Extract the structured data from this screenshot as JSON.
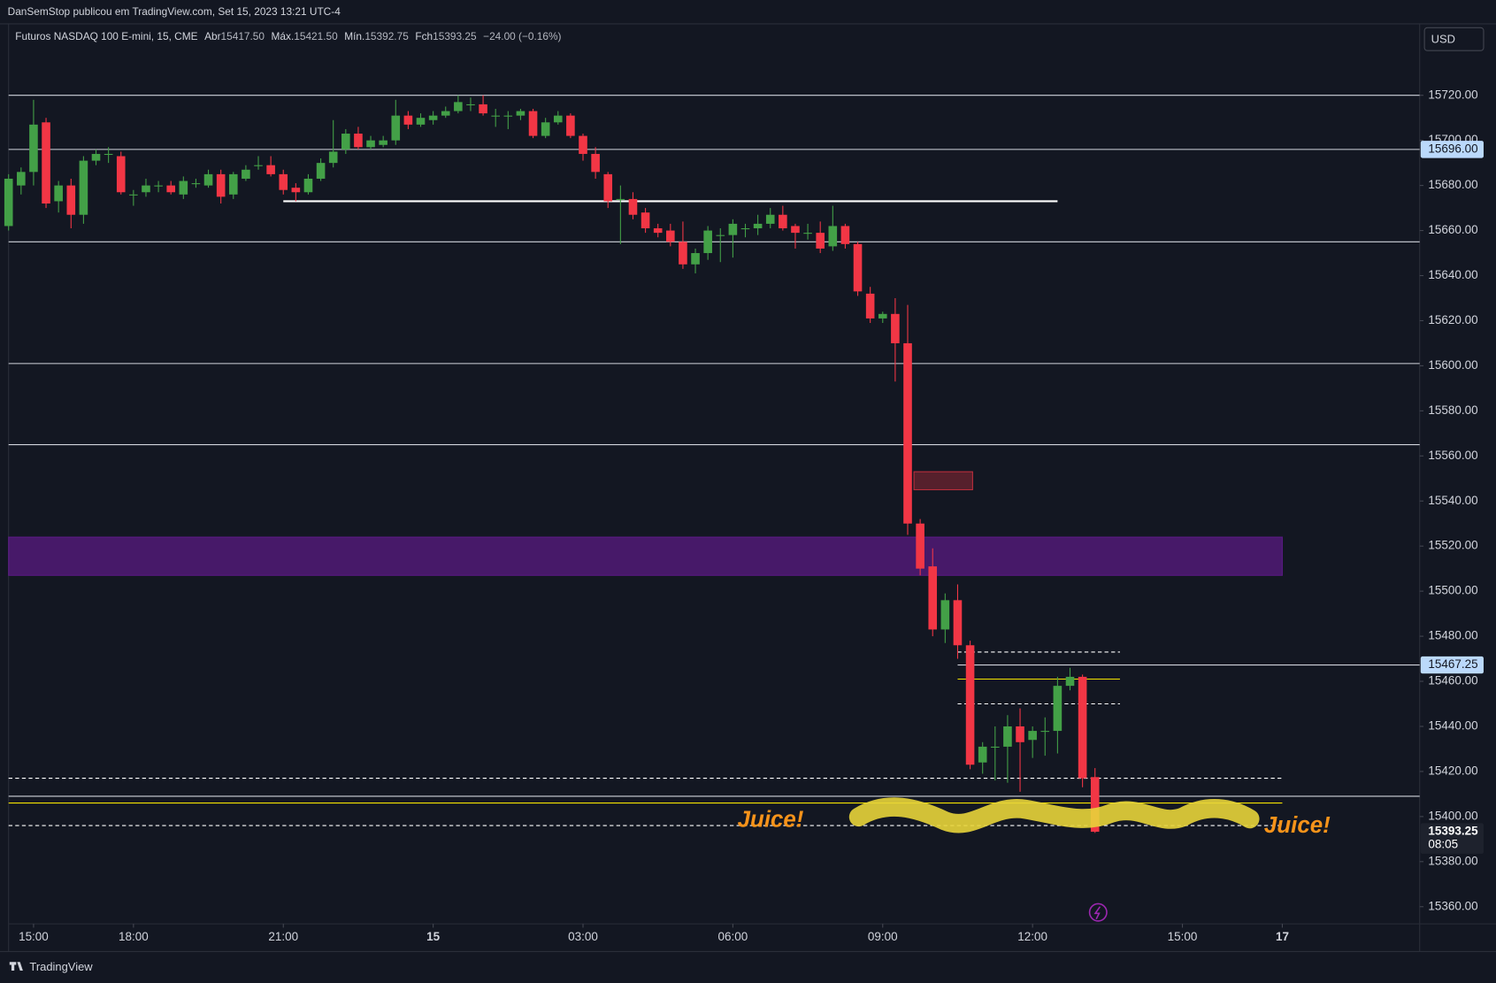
{
  "header": {
    "credit": "DanSemStop publicou em TradingView.com, Set 15, 2023 13:21 UTC-4",
    "currency": "USD",
    "footer": "TradingView"
  },
  "chart_data": {
    "type": "candlestick",
    "title": "Futuros NASDAQ 100 E-mini, 15, CME",
    "legend": [
      {
        "label": "Abr",
        "value": "15417.50"
      },
      {
        "label": "Máx.",
        "value": "15421.50"
      },
      {
        "label": "Mín.",
        "value": "15392.75"
      },
      {
        "label": "Fch",
        "value": "15393.25"
      }
    ],
    "change": "−24.00 (−0.16%)",
    "up_color": "#43a047",
    "down_color": "#f23645",
    "x": [
      0,
      1,
      2,
      3,
      4,
      5,
      6,
      7,
      8,
      9,
      10,
      11,
      12,
      13,
      14,
      15,
      16,
      17,
      18,
      19,
      20,
      21,
      22,
      23,
      24,
      25,
      26,
      27,
      28,
      29,
      30,
      31,
      32,
      33,
      34,
      35,
      36,
      37,
      38,
      39,
      40,
      41,
      42,
      43,
      44,
      45,
      46,
      47,
      48,
      49,
      50,
      51,
      52,
      53,
      54,
      55,
      56,
      57,
      58,
      59,
      60,
      61,
      62,
      63,
      64,
      65,
      66,
      67,
      68,
      69,
      70,
      71,
      72,
      73,
      74,
      75,
      76,
      77,
      78,
      79,
      80,
      81,
      82,
      83,
      84,
      85,
      86,
      87
    ],
    "open": [
      15662,
      15680,
      15686,
      15708,
      15673,
      15680,
      15667,
      15691,
      15694,
      15693,
      15676,
      15677,
      15680,
      15680,
      15676,
      15681,
      15680,
      15685,
      15676,
      15683,
      15689,
      15689,
      15685,
      15679,
      15677,
      15683,
      15690,
      15696,
      15703,
      15697,
      15698,
      15700,
      15711,
      15707,
      15709,
      15711,
      15713,
      15716,
      15716,
      15711,
      15711,
      15711,
      15713,
      15702,
      15708,
      15711,
      15702,
      15694,
      15685,
      15674,
      15674,
      15668,
      15661,
      15660,
      15655,
      15645,
      15650,
      15658,
      15658,
      15661,
      15661,
      15663,
      15667,
      15662,
      15659,
      15659,
      15653,
      15662,
      15654,
      15632,
      15621,
      15623,
      15610,
      15530,
      15511,
      15483,
      15496,
      15476,
      15424,
      15431,
      15431,
      15440,
      15434,
      15438,
      15438,
      15458,
      15462,
      15417.5
    ],
    "high": [
      15685,
      15688,
      15718,
      15710,
      15682,
      15683,
      15693,
      15696,
      15697,
      15695,
      15678,
      15683,
      15682,
      15682,
      15684,
      15683,
      15687,
      15687,
      15686,
      15689,
      15693,
      15693,
      15687,
      15681,
      15685,
      15692,
      15709,
      15705,
      15706,
      15702,
      15702,
      15718,
      15713,
      15712,
      15713,
      15715,
      15720,
      15719,
      15720,
      15714,
      15713,
      15714,
      15714,
      15710,
      15713,
      15712,
      15703,
      15697,
      15686,
      15680,
      15677,
      15670,
      15663,
      15663,
      15664,
      15652,
      15662,
      15661,
      15665,
      15663,
      15667,
      15670,
      15671,
      15663,
      15663,
      15664,
      15671,
      15663,
      15655,
      15635,
      15624,
      15630,
      15627,
      15532,
      15519,
      15499,
      15503,
      15478,
      15433,
      15440,
      15445,
      15448,
      15440,
      15444,
      15462,
      15466,
      15463,
      15421.5
    ],
    "low": [
      15660,
      15676,
      15680,
      15670,
      15668,
      15661,
      15663,
      15689,
      15690,
      15676,
      15671,
      15675,
      15677,
      15676,
      15674,
      15679,
      15679,
      15672,
      15674,
      15682,
      15687,
      15684,
      15676,
      15673,
      15676,
      15682,
      15688,
      15694,
      15696,
      15696,
      15697,
      15698,
      15705,
      15706,
      15707,
      15710,
      15712,
      15713,
      15711,
      15706,
      15705,
      15709,
      15701,
      15701,
      15707,
      15701,
      15691,
      15683,
      15670,
      15654,
      15665,
      15659,
      15657,
      15653,
      15643,
      15641,
      15647,
      15646,
      15648,
      15657,
      15658,
      15661,
      15660,
      15652,
      15656,
      15650,
      15651,
      15652,
      15631,
      15619,
      15619,
      15593,
      15525,
      15507,
      15480,
      15477,
      15470,
      15421,
      15419,
      15416,
      15415,
      15411,
      15426,
      15427,
      15428,
      15456,
      15413,
      15392.75
    ],
    "close": [
      15683,
      15686,
      15707,
      15672,
      15680,
      15667,
      15691,
      15694,
      15694,
      15677,
      15676,
      15680,
      15680,
      15677,
      15682,
      15681,
      15685,
      15675,
      15685,
      15687,
      15689,
      15685,
      15678,
      15677,
      15683,
      15690,
      15695,
      15703,
      15697,
      15700,
      15700,
      15711,
      15707,
      15710,
      15711,
      15713,
      15717,
      15716,
      15712,
      15711,
      15711,
      15713,
      15702,
      15708,
      15711,
      15702,
      15694,
      15686,
      15673,
      15674,
      15667,
      15661,
      15659,
      15655,
      15645,
      15650,
      15660,
      15658,
      15663,
      15661,
      15663,
      15667,
      15661,
      15659,
      15659,
      15652,
      15662,
      15654,
      15633,
      15621,
      15623,
      15610,
      15530,
      15510,
      15483,
      15496,
      15476,
      15423,
      15431,
      15431,
      15440,
      15433,
      15438,
      15438,
      15458,
      15462,
      15417,
      15393.25
    ],
    "xlim": [
      0,
      113
    ],
    "xticks": [
      {
        "value": 2,
        "label": "15:00"
      },
      {
        "value": 10,
        "label": "18:00"
      },
      {
        "value": 22,
        "label": "21:00"
      },
      {
        "value": 34,
        "label": "15"
      },
      {
        "value": 46,
        "label": "03:00"
      },
      {
        "value": 58,
        "label": "06:00"
      },
      {
        "value": 70,
        "label": "09:00"
      },
      {
        "value": 82,
        "label": "12:00"
      },
      {
        "value": 94,
        "label": "15:00"
      },
      {
        "value": 102,
        "label": "17"
      }
    ],
    "ylim": [
      15352.4,
      15739
    ],
    "yticks": [
      {
        "value": 15360,
        "label": "15360.00"
      },
      {
        "value": 15380,
        "label": "15380.00"
      },
      {
        "value": 15400,
        "label": "15400.00"
      },
      {
        "value": 15420,
        "label": "15420.00"
      },
      {
        "value": 15440,
        "label": "15440.00"
      },
      {
        "value": 15460,
        "label": "15460.00"
      },
      {
        "value": 15480,
        "label": "15480.00"
      },
      {
        "value": 15500,
        "label": "15500.00"
      },
      {
        "value": 15520,
        "label": "15520.00"
      },
      {
        "value": 15540,
        "label": "15540.00"
      },
      {
        "value": 15560,
        "label": "15560.00"
      },
      {
        "value": 15580,
        "label": "15580.00"
      },
      {
        "value": 15600,
        "label": "15600.00"
      },
      {
        "value": 15620,
        "label": "15620.00"
      },
      {
        "value": 15640,
        "label": "15640.00"
      },
      {
        "value": 15660,
        "label": "15660.00"
      },
      {
        "value": 15680,
        "label": "15680.00"
      },
      {
        "value": 15700,
        "label": "15700.00"
      },
      {
        "value": 15720,
        "label": "15720.00"
      }
    ],
    "levels": [
      {
        "value": 15720,
        "from": 0,
        "to": 113,
        "color": "#d1d4dc",
        "style": "solid"
      },
      {
        "value": 15696,
        "from": 0,
        "to": 113,
        "color": "#d1d4dc",
        "style": "solid"
      },
      {
        "value": 15655,
        "from": 0,
        "to": 113,
        "color": "#d1d4dc",
        "style": "solid"
      },
      {
        "value": 15601,
        "from": 0,
        "to": 113,
        "color": "#d1d4dc",
        "style": "solid"
      },
      {
        "value": 15565,
        "from": 0,
        "to": 113,
        "color": "#d1d4dc",
        "style": "solid"
      },
      {
        "value": 15409,
        "from": 0,
        "to": 113,
        "color": "#d1d4dc",
        "style": "solid"
      },
      {
        "value": 15467.25,
        "from": 76,
        "to": 113,
        "color": "#d1d4dc",
        "style": "solid"
      },
      {
        "value": 15673,
        "from": 22,
        "to": 84,
        "color": "#ffffff",
        "style": "thick"
      },
      {
        "value": 15406,
        "from": 0,
        "to": 102,
        "color": "#f5e400",
        "style": "solid"
      },
      {
        "value": 15417,
        "from": 0,
        "to": 102,
        "color": "#ffffff",
        "style": "dashed"
      },
      {
        "value": 15396,
        "from": 0,
        "to": 102,
        "color": "#ffffff",
        "style": "dashed"
      },
      {
        "value": 15473,
        "from": 76,
        "to": 89,
        "color": "#ffffff",
        "style": "dashed"
      },
      {
        "value": 15450,
        "from": 76,
        "to": 89,
        "color": "#ffffff",
        "style": "dashed"
      },
      {
        "value": 15461,
        "from": 76,
        "to": 89,
        "color": "#f5e400",
        "style": "solid"
      }
    ],
    "zones": [
      {
        "low": 15507,
        "high": 15524,
        "from": 0,
        "to": 102,
        "color": "#6a1b9a",
        "opacity": 0.6
      },
      {
        "low": 15545,
        "high": 15553,
        "from": 72.5,
        "to": 77.2,
        "color": "#f23645",
        "opacity": 0.3
      }
    ],
    "price_tags": [
      {
        "value": 15696,
        "label": "15696.00"
      },
      {
        "value": 15467.25,
        "label": "15467.25"
      }
    ],
    "last_price": {
      "value": 15393.25,
      "label": "15393.25",
      "countdown": "08:05"
    },
    "annotations": [
      "Juice!",
      "Juice!"
    ]
  }
}
